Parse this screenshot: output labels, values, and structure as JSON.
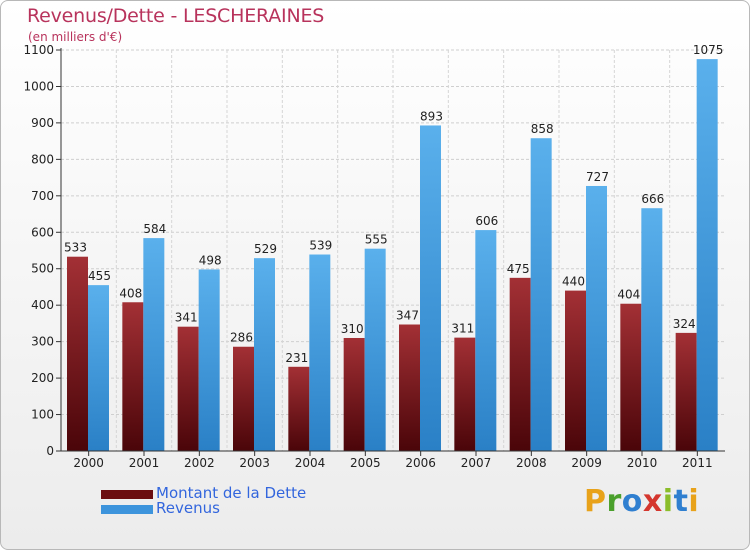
{
  "chart_data": {
    "type": "bar",
    "title": "Revenus/Dette - LESCHERAINES",
    "subtitle": "(en milliers d'€)",
    "categories": [
      "2000",
      "2001",
      "2002",
      "2003",
      "2004",
      "2005",
      "2006",
      "2007",
      "2008",
      "2009",
      "2010",
      "2011"
    ],
    "series": [
      {
        "name": "Montant de la Dette",
        "color": "#7a1518",
        "values": [
          533,
          408,
          341,
          286,
          231,
          310,
          347,
          311,
          475,
          440,
          404,
          324
        ]
      },
      {
        "name": "Revenus",
        "color": "#3d94dc",
        "values": [
          455,
          584,
          498,
          529,
          539,
          555,
          893,
          606,
          858,
          727,
          666,
          1075
        ]
      }
    ],
    "ylim": [
      0,
      1100
    ],
    "yticks": [
      0,
      100,
      200,
      300,
      400,
      500,
      600,
      700,
      800,
      900,
      1000,
      1100
    ],
    "grid": true,
    "legend_position": "bottom-left"
  },
  "logo": {
    "text": "Proxiti",
    "letters": [
      "P",
      "r",
      "o",
      "x",
      "i",
      "t",
      "i"
    ],
    "colors": [
      "#e8a21a",
      "#4aa02c",
      "#2f7fd0",
      "#d4362e",
      "#8bbd2a",
      "#2f7fd0",
      "#e8a21a"
    ]
  }
}
